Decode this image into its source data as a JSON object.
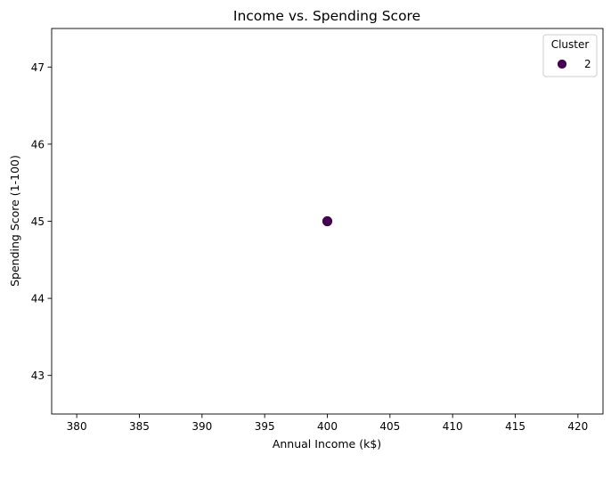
{
  "chart_data": {
    "type": "scatter",
    "title": "Income vs. Spending Score",
    "xlabel": "Annual Income (k$)",
    "ylabel": "Spending Score (1-100)",
    "xlim": [
      378,
      422
    ],
    "ylim": [
      42.5,
      47.5
    ],
    "xticks": [
      380,
      385,
      390,
      395,
      400,
      405,
      410,
      415,
      420
    ],
    "yticks": [
      43,
      44,
      45,
      46,
      47
    ],
    "grid": false,
    "legend": {
      "title": "Cluster",
      "placement": "top-right",
      "entries": [
        {
          "label": "2",
          "color": "#440154"
        }
      ]
    },
    "series": [
      {
        "name": "2",
        "color": "#440154",
        "points": [
          {
            "x": 400,
            "y": 45
          }
        ]
      }
    ]
  }
}
